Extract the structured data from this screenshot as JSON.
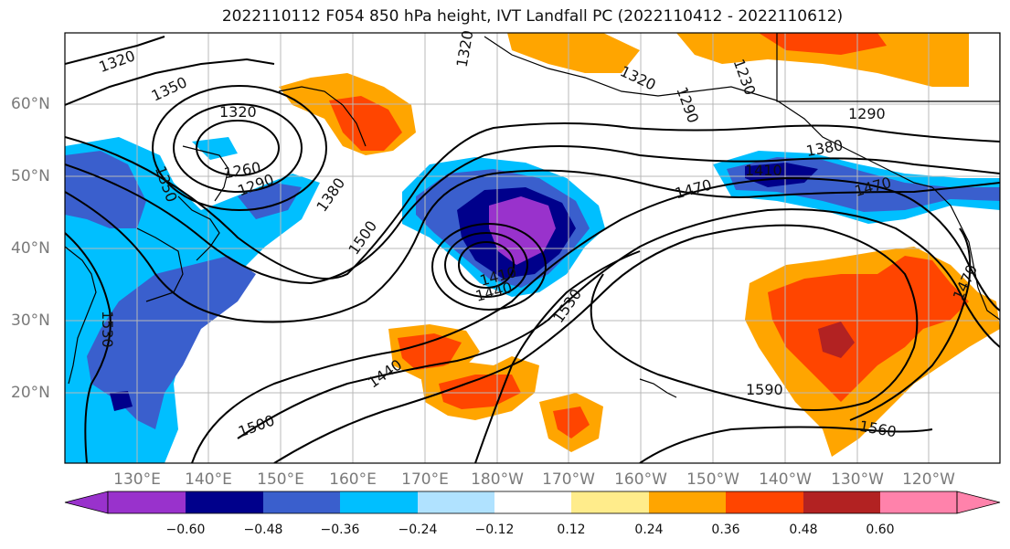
{
  "title": "2022110112 F054 850 hPa height, IVT Landfall PC (2022110412 - 2022110612)",
  "lat_labels": [
    "60°N",
    "50°N",
    "40°N",
    "30°N",
    "20°N"
  ],
  "lon_labels": [
    "130°E",
    "140°E",
    "150°E",
    "160°E",
    "170°E",
    "180°W",
    "170°W",
    "160°W",
    "150°W",
    "140°W",
    "130°W",
    "120°W"
  ],
  "colorbar": {
    "ticks": [
      "−0.60",
      "−0.48",
      "−0.36",
      "−0.24",
      "−0.12",
      "0.12",
      "0.24",
      "0.36",
      "0.48",
      "0.60"
    ],
    "colors": [
      "#9932CC",
      "#00008B",
      "#3A5FCD",
      "#00BFFF",
      "#B0E2FF",
      "#FFFFFF",
      "#FFEC8B",
      "#FFA500",
      "#FF4500",
      "#B22222",
      "#FF82AB"
    ]
  },
  "contour_labels": [
    "1320",
    "1350",
    "1320",
    "1260",
    "1290",
    "1350",
    "1380",
    "1500",
    "1440",
    "1410",
    "1440",
    "1530",
    "1470",
    "1500",
    "1590",
    "1560",
    "1530",
    "1470",
    "1290",
    "1320",
    "1290",
    "1230",
    "1320",
    "1380",
    "1410",
    "1470"
  ]
}
